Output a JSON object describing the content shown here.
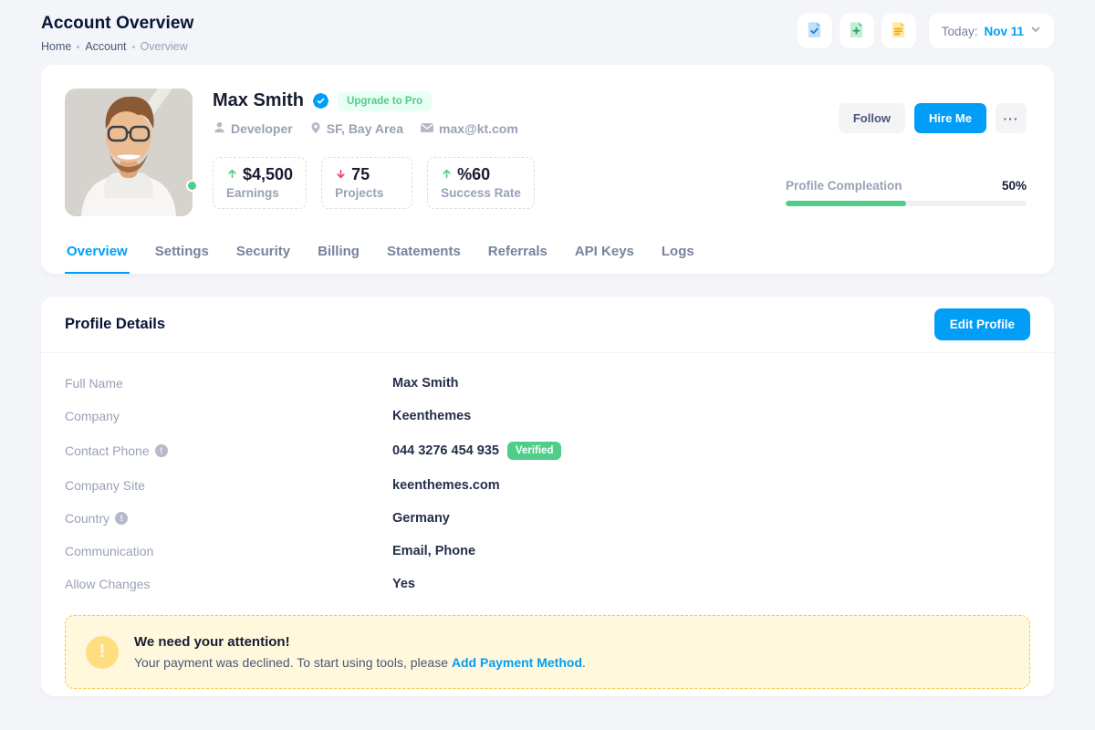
{
  "colors": {
    "accent_blue": "#009ef7",
    "success_green": "#50cd89",
    "success_light": "#e8fff3",
    "danger_red": "#f1416c",
    "warning_bg": "#fff8dd",
    "warning_border": "#f5c64a",
    "muted_text": "#99a1b7",
    "dark_text": "#181c32"
  },
  "header": {
    "title": "Account Overview",
    "breadcrumb": [
      {
        "label": "Home"
      },
      {
        "label": "Account"
      },
      {
        "label": "Overview"
      }
    ]
  },
  "toolbar": {
    "icons": [
      "file-check-icon",
      "file-plus-icon",
      "file-lines-icon"
    ],
    "today_label": "Today:",
    "today_value": "Nov 11"
  },
  "profile": {
    "name": "Max Smith",
    "verified": true,
    "upgrade_badge": "Upgrade to Pro",
    "meta": [
      {
        "icon": "user-icon",
        "label": "Developer"
      },
      {
        "icon": "pin-icon",
        "label": "SF, Bay Area"
      },
      {
        "icon": "mail-icon",
        "label": "max@kt.com"
      }
    ],
    "stats": [
      {
        "trend": "up",
        "value": "$4,500",
        "label": "Earnings"
      },
      {
        "trend": "down",
        "value": "75",
        "label": "Projects"
      },
      {
        "trend": "up",
        "value": "%60",
        "label": "Success Rate"
      }
    ],
    "actions": {
      "follow": "Follow",
      "hire": "Hire Me",
      "more_label": "···"
    },
    "completion": {
      "label": "Profile Compleation",
      "percent": 50,
      "percent_label": "50%"
    }
  },
  "tabs": [
    {
      "label": "Overview",
      "active": true
    },
    {
      "label": "Settings",
      "active": false
    },
    {
      "label": "Security",
      "active": false
    },
    {
      "label": "Billing",
      "active": false
    },
    {
      "label": "Statements",
      "active": false
    },
    {
      "label": "Referrals",
      "active": false
    },
    {
      "label": "API Keys",
      "active": false
    },
    {
      "label": "Logs",
      "active": false
    }
  ],
  "details": {
    "title": "Profile Details",
    "edit_button": "Edit Profile",
    "rows": [
      {
        "label": "Full Name",
        "value": "Max Smith"
      },
      {
        "label": "Company",
        "value": "Keenthemes"
      },
      {
        "label": "Contact Phone",
        "value": "044 3276 454 935",
        "info": true,
        "badge": "Verified"
      },
      {
        "label": "Company Site",
        "value": "keenthemes.com"
      },
      {
        "label": "Country",
        "value": "Germany",
        "info": true
      },
      {
        "label": "Communication",
        "value": "Email, Phone"
      },
      {
        "label": "Allow Changes",
        "value": "Yes"
      }
    ]
  },
  "alert": {
    "title": "We need your attention!",
    "text_before": "Your payment was declined. To start using tools, please ",
    "link": "Add Payment Method",
    "text_after": "."
  }
}
